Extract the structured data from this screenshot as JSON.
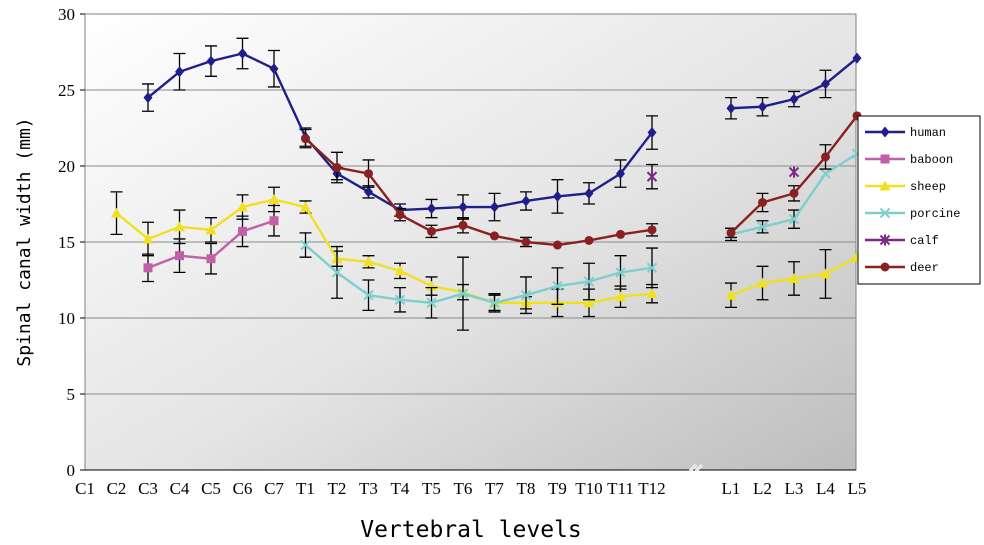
{
  "chart_data": {
    "type": "line",
    "xlabel": "Vertebral levels",
    "ylabel": "Spinal canal width (mm)",
    "ylim": [
      0,
      30
    ],
    "yticks": [
      0,
      5,
      10,
      15,
      20,
      25,
      30
    ],
    "grid": true,
    "legend_position": "right",
    "categories": [
      "C1",
      "C2",
      "C3",
      "C4",
      "C5",
      "C6",
      "C7",
      "T1",
      "T2",
      "T3",
      "T4",
      "T5",
      "T6",
      "T7",
      "T8",
      "T9",
      "T10",
      "T11",
      "T12",
      "L1",
      "L2",
      "L3",
      "L4",
      "L5"
    ],
    "series": [
      {
        "name": "human",
        "color": "#1f1f8a",
        "marker": "diamond",
        "values": [
          null,
          null,
          24.5,
          26.2,
          26.9,
          27.4,
          26.4,
          21.9,
          19.5,
          18.3,
          17.1,
          17.2,
          17.3,
          17.3,
          17.7,
          18.0,
          18.2,
          19.5,
          22.2,
          23.8,
          23.9,
          24.4,
          25.4,
          27.1
        ],
        "errors": [
          null,
          null,
          0.9,
          1.2,
          1.0,
          1.0,
          1.2,
          0.6,
          0.4,
          0.4,
          0.4,
          0.6,
          0.8,
          0.9,
          0.6,
          1.1,
          0.7,
          0.9,
          1.1,
          0.7,
          0.6,
          0.5,
          0.9,
          null
        ]
      },
      {
        "name": "baboon",
        "color": "#c060a8",
        "marker": "square",
        "values": [
          null,
          null,
          13.3,
          14.1,
          13.9,
          15.7,
          16.4,
          null,
          null,
          null,
          null,
          null,
          null,
          null,
          null,
          null,
          null,
          null,
          null,
          null,
          null,
          null,
          null,
          null
        ],
        "errors": [
          null,
          null,
          0.9,
          1.1,
          1.0,
          1.0,
          1.0,
          null,
          null,
          null,
          null,
          null,
          null,
          null,
          null,
          null,
          null,
          null,
          null,
          null,
          null,
          null,
          null,
          null
        ]
      },
      {
        "name": "sheep",
        "color": "#f0e020",
        "marker": "triangle",
        "values": [
          null,
          16.9,
          15.2,
          16.0,
          15.8,
          17.3,
          17.8,
          17.3,
          13.9,
          13.7,
          13.1,
          12.1,
          11.7,
          11.0,
          11.0,
          11.0,
          11.0,
          11.4,
          11.6,
          11.5,
          12.3,
          12.6,
          12.9,
          14.0
        ],
        "errors": [
          null,
          1.4,
          1.1,
          1.1,
          0.8,
          0.8,
          0.8,
          0.4,
          0.5,
          0.4,
          0.5,
          0.6,
          0.5,
          0.6,
          0.4,
          0.9,
          0.9,
          0.7,
          0.6,
          0.8,
          1.1,
          1.1,
          1.6,
          null
        ]
      },
      {
        "name": "porcine",
        "color": "#7ecece",
        "marker": "x",
        "values": [
          null,
          null,
          null,
          null,
          null,
          null,
          null,
          14.8,
          13.0,
          11.5,
          11.2,
          11.0,
          11.6,
          11.0,
          11.5,
          12.1,
          12.4,
          13.0,
          13.3,
          15.5,
          16.0,
          16.5,
          19.5,
          20.8
        ],
        "errors": [
          null,
          null,
          null,
          null,
          null,
          null,
          null,
          0.8,
          1.7,
          1.0,
          0.8,
          1.0,
          2.4,
          0.5,
          1.2,
          1.2,
          1.2,
          1.1,
          1.3,
          0.4,
          0.4,
          0.6,
          null,
          null
        ]
      },
      {
        "name": "calf",
        "color": "#7a2a82",
        "marker": "star",
        "values": [
          null,
          null,
          null,
          null,
          null,
          null,
          null,
          null,
          null,
          null,
          null,
          null,
          null,
          null,
          null,
          null,
          null,
          null,
          19.3,
          null,
          null,
          19.6,
          null,
          null
        ],
        "errors": [
          null,
          null,
          null,
          null,
          null,
          null,
          null,
          null,
          null,
          null,
          null,
          null,
          null,
          null,
          null,
          null,
          null,
          null,
          0.8,
          null,
          null,
          null,
          null,
          null
        ]
      },
      {
        "name": "deer",
        "color": "#8a2020",
        "marker": "circle",
        "values": [
          null,
          null,
          null,
          null,
          null,
          null,
          null,
          21.8,
          19.9,
          19.5,
          16.8,
          15.7,
          16.1,
          15.4,
          15.0,
          14.8,
          15.1,
          15.5,
          15.8,
          15.6,
          17.6,
          18.2,
          20.6,
          23.3
        ],
        "errors": [
          null,
          null,
          null,
          null,
          null,
          null,
          null,
          0.6,
          1.0,
          0.9,
          0.4,
          0.4,
          0.5,
          null,
          0.3,
          null,
          null,
          null,
          0.4,
          0.3,
          0.6,
          0.5,
          0.8,
          null
        ]
      }
    ]
  }
}
